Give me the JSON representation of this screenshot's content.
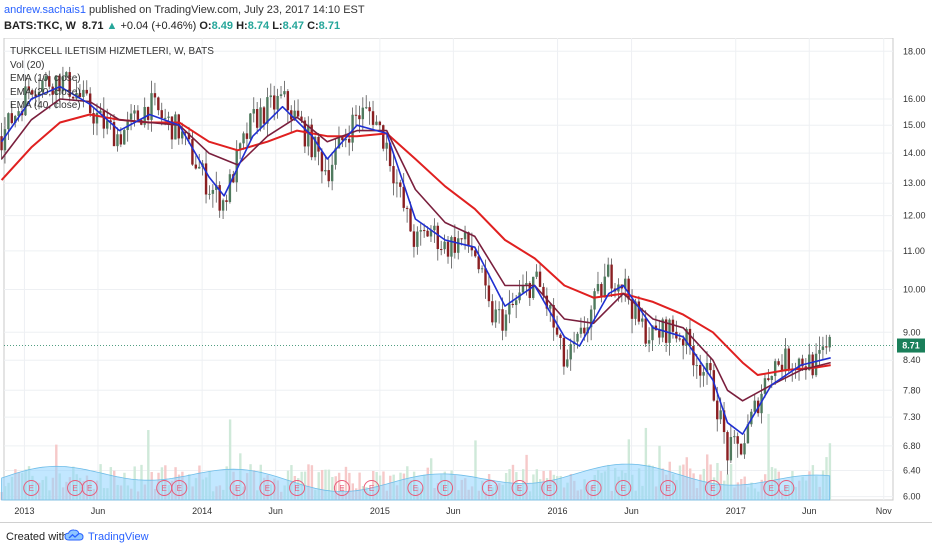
{
  "header": {
    "user": "andrew.sachais1",
    "published": "published on TradingView.com, July 23, 2017 14:10 EST",
    "symbol": "BATS:TKC, W",
    "last": "8.71",
    "change": "+0.04 (+0.46%)",
    "o_label": "O:",
    "o": "8.49",
    "h_label": "H:",
    "h": "8.74",
    "l_label": "L:",
    "l": "8.47",
    "c_label": "C:",
    "c": "8.71"
  },
  "legend": {
    "title": "TURKCELL ILETISIM HIZMETLERI, W, BATS",
    "vol": "Vol (20)",
    "ema10": "EMA (10, close)",
    "ema20": "EMA (20, close)",
    "ema40": "EMA (40, close)"
  },
  "footer": {
    "created": "Created with",
    "brand": "TradingView"
  },
  "colors": {
    "up": "#26a69a",
    "down": "#ef5350",
    "ema10": "#1f2fd1",
    "ema20": "#7a1f3d",
    "ema40": "#e02020",
    "volume_area": "#8fd3ff",
    "last_price_label": "#1a7f5a"
  },
  "chart_data": {
    "type": "candlestick",
    "y_scale": "log",
    "ylim": [
      5.95,
      18.6
    ],
    "x_range": [
      "2012-11-20",
      "2017-11-20"
    ],
    "x_tick_labels": [
      "2013",
      "Jun",
      "2014",
      "Jun",
      "2015",
      "Jun",
      "2016",
      "Jun",
      "2017",
      "Jun",
      "Nov"
    ],
    "y_tick_labels": [
      "18.00",
      "16.00",
      "15.00",
      "14.00",
      "13.00",
      "12.00",
      "11.00",
      "10.00",
      "9.00",
      "8.40",
      "7.80",
      "7.30",
      "6.80",
      "6.40",
      "6.00"
    ],
    "last_price": 8.71,
    "earnings_markers": [
      "2013-01",
      "2013-04",
      "2013-05",
      "2013-10",
      "2013-11",
      "2014-03",
      "2014-05",
      "2014-07",
      "2014-10",
      "2014-12",
      "2015-03",
      "2015-05",
      "2015-08",
      "2015-10",
      "2015-12",
      "2016-03",
      "2016-05",
      "2016-08",
      "2016-11",
      "2017-03",
      "2017-04"
    ],
    "earnings_marker_label": "E",
    "price_path": [
      [
        "2012-11",
        14.6
      ],
      [
        "2012-12",
        15.5
      ],
      [
        "2013-01",
        16.6
      ],
      [
        "2013-02",
        16.7
      ],
      [
        "2013-03",
        16.8
      ],
      [
        "2013-04",
        16.3
      ],
      [
        "2013-05",
        15.6
      ],
      [
        "2013-06",
        15.0
      ],
      [
        "2013-07",
        14.6
      ],
      [
        "2013-08",
        15.2
      ],
      [
        "2013-09",
        15.8
      ],
      [
        "2013-10",
        15.2
      ],
      [
        "2013-11",
        14.8
      ],
      [
        "2013-12",
        13.8
      ],
      [
        "2014-01",
        12.9
      ],
      [
        "2014-02",
        12.4
      ],
      [
        "2014-03",
        13.8
      ],
      [
        "2014-04",
        15.2
      ],
      [
        "2014-05",
        15.6
      ],
      [
        "2014-06",
        16.0
      ],
      [
        "2014-07",
        15.2
      ],
      [
        "2014-08",
        14.3
      ],
      [
        "2014-09",
        13.4
      ],
      [
        "2014-10",
        14.4
      ],
      [
        "2014-11",
        15.4
      ],
      [
        "2014-12",
        15.5
      ],
      [
        "2015-01",
        14.3
      ],
      [
        "2015-02",
        12.4
      ],
      [
        "2015-03",
        11.2
      ],
      [
        "2015-04",
        11.6
      ],
      [
        "2015-05",
        11.1
      ],
      [
        "2015-06",
        11.3
      ],
      [
        "2015-07",
        11.0
      ],
      [
        "2015-08",
        9.4
      ],
      [
        "2015-09",
        9.3
      ],
      [
        "2015-10",
        9.8
      ],
      [
        "2015-11",
        10.3
      ],
      [
        "2015-12",
        9.5
      ],
      [
        "2016-01",
        8.3
      ],
      [
        "2016-02",
        8.8
      ],
      [
        "2016-03",
        9.6
      ],
      [
        "2016-04",
        10.4
      ],
      [
        "2016-05",
        10.2
      ],
      [
        "2016-06",
        9.2
      ],
      [
        "2016-07",
        8.9
      ],
      [
        "2016-08",
        9.1
      ],
      [
        "2016-09",
        8.9
      ],
      [
        "2016-10",
        8.4
      ],
      [
        "2016-11",
        7.9
      ],
      [
        "2016-12",
        6.7
      ],
      [
        "2017-01",
        6.8
      ],
      [
        "2017-02",
        7.6
      ],
      [
        "2017-03",
        8.3
      ],
      [
        "2017-04",
        8.4
      ],
      [
        "2017-05",
        8.4
      ],
      [
        "2017-06",
        8.3
      ],
      [
        "2017-07",
        8.71
      ]
    ],
    "ema10_path": [
      [
        "2012-11",
        14.4
      ],
      [
        "2013-01",
        16.0
      ],
      [
        "2013-03",
        16.5
      ],
      [
        "2013-05",
        15.8
      ],
      [
        "2013-07",
        14.8
      ],
      [
        "2013-09",
        15.4
      ],
      [
        "2013-11",
        15.0
      ],
      [
        "2014-01",
        13.2
      ],
      [
        "2014-02",
        12.6
      ],
      [
        "2014-04",
        14.6
      ],
      [
        "2014-06",
        15.7
      ],
      [
        "2014-08",
        14.6
      ],
      [
        "2014-09",
        13.8
      ],
      [
        "2014-11",
        15.0
      ],
      [
        "2015-01",
        14.7
      ],
      [
        "2015-03",
        11.9
      ],
      [
        "2015-05",
        11.3
      ],
      [
        "2015-07",
        11.1
      ],
      [
        "2015-09",
        9.6
      ],
      [
        "2015-11",
        10.1
      ],
      [
        "2016-01",
        8.9
      ],
      [
        "2016-02",
        8.7
      ],
      [
        "2016-04",
        9.9
      ],
      [
        "2016-05",
        10.1
      ],
      [
        "2016-07",
        9.1
      ],
      [
        "2016-09",
        8.9
      ],
      [
        "2016-11",
        8.0
      ],
      [
        "2016-12",
        7.2
      ],
      [
        "2017-01",
        7.0
      ],
      [
        "2017-03",
        7.9
      ],
      [
        "2017-05",
        8.3
      ],
      [
        "2017-07",
        8.45
      ]
    ],
    "ema20_path": [
      [
        "2012-11",
        13.8
      ],
      [
        "2013-01",
        15.2
      ],
      [
        "2013-03",
        16.0
      ],
      [
        "2013-05",
        15.9
      ],
      [
        "2013-07",
        15.2
      ],
      [
        "2013-09",
        15.1
      ],
      [
        "2013-11",
        15.0
      ],
      [
        "2014-01",
        14.0
      ],
      [
        "2014-03",
        13.6
      ],
      [
        "2014-05",
        14.6
      ],
      [
        "2014-07",
        15.3
      ],
      [
        "2014-09",
        14.4
      ],
      [
        "2014-11",
        14.8
      ],
      [
        "2015-01",
        14.8
      ],
      [
        "2015-03",
        12.8
      ],
      [
        "2015-05",
        11.8
      ],
      [
        "2015-07",
        11.4
      ],
      [
        "2015-09",
        10.1
      ],
      [
        "2015-11",
        10.1
      ],
      [
        "2016-01",
        9.3
      ],
      [
        "2016-03",
        9.2
      ],
      [
        "2016-05",
        9.9
      ],
      [
        "2016-07",
        9.3
      ],
      [
        "2016-09",
        9.1
      ],
      [
        "2016-11",
        8.4
      ],
      [
        "2016-12",
        7.8
      ],
      [
        "2017-01",
        7.6
      ],
      [
        "2017-03",
        7.9
      ],
      [
        "2017-05",
        8.2
      ],
      [
        "2017-07",
        8.35
      ]
    ],
    "ema40_path": [
      [
        "2012-11",
        13.1
      ],
      [
        "2013-01",
        14.2
      ],
      [
        "2013-03",
        15.1
      ],
      [
        "2013-05",
        15.4
      ],
      [
        "2013-07",
        15.2
      ],
      [
        "2013-09",
        15.1
      ],
      [
        "2013-11",
        15.1
      ],
      [
        "2014-01",
        14.4
      ],
      [
        "2014-03",
        14.1
      ],
      [
        "2014-05",
        14.4
      ],
      [
        "2014-07",
        14.8
      ],
      [
        "2014-09",
        14.6
      ],
      [
        "2014-11",
        14.6
      ],
      [
        "2015-01",
        14.7
      ],
      [
        "2015-03",
        13.8
      ],
      [
        "2015-05",
        12.9
      ],
      [
        "2015-07",
        12.2
      ],
      [
        "2015-09",
        11.3
      ],
      [
        "2015-11",
        10.8
      ],
      [
        "2016-01",
        10.1
      ],
      [
        "2016-03",
        9.8
      ],
      [
        "2016-05",
        9.9
      ],
      [
        "2016-07",
        9.7
      ],
      [
        "2016-09",
        9.4
      ],
      [
        "2016-11",
        9.0
      ],
      [
        "2017-01",
        8.35
      ],
      [
        "2017-02",
        8.1
      ],
      [
        "2017-04",
        8.2
      ],
      [
        "2017-06",
        8.25
      ],
      [
        "2017-07",
        8.3
      ]
    ]
  }
}
